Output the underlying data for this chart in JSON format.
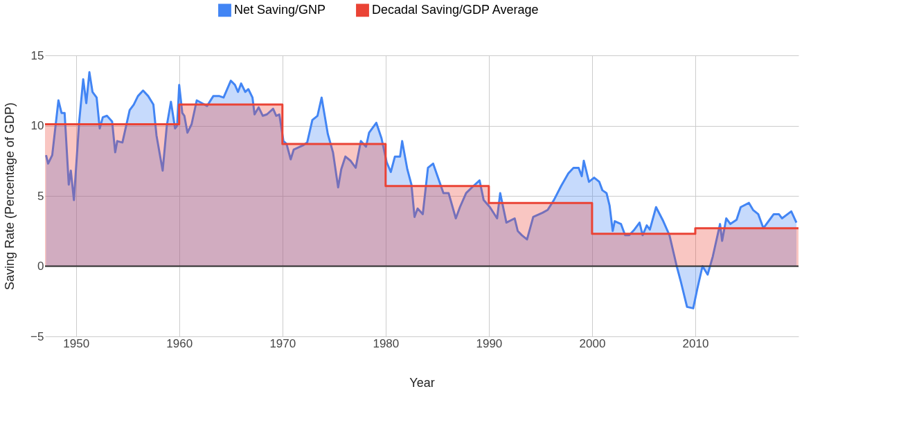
{
  "chart_data": {
    "type": "area",
    "xlabel": "Year",
    "ylabel": "Saving Rate (Percentage of GDP)",
    "xlim": [
      1947,
      2020
    ],
    "xticks": [
      1950,
      1960,
      1970,
      1980,
      1990,
      2000,
      2010
    ],
    "ylim": [
      -5,
      15
    ],
    "yticks": [
      -5,
      0,
      5,
      10,
      15
    ],
    "grid": true,
    "legend": "top",
    "ref_lines": [
      {
        "axis": "y",
        "value": 0,
        "color": "#333333"
      }
    ],
    "series": [
      {
        "name": "Net Saving/GNP",
        "color": "#4285f4",
        "x": [
          1947.1,
          1947.3,
          1947.7,
          1948.3,
          1948.6,
          1948.9,
          1949.3,
          1949.5,
          1949.8,
          1950.3,
          1950.7,
          1951.0,
          1951.3,
          1951.6,
          1952.0,
          1952.3,
          1952.6,
          1953.0,
          1953.5,
          1953.8,
          1954.0,
          1954.5,
          1955.2,
          1955.6,
          1956.0,
          1956.5,
          1957.0,
          1957.5,
          1957.8,
          1958.4,
          1958.8,
          1959.2,
          1959.6,
          1959.8,
          1960.0,
          1960.3,
          1960.5,
          1960.8,
          1961.2,
          1961.7,
          1962.2,
          1962.7,
          1963.3,
          1963.9,
          1964.3,
          1965.0,
          1965.4,
          1965.7,
          1966.0,
          1966.4,
          1966.7,
          1967.1,
          1967.3,
          1967.7,
          1968.1,
          1968.5,
          1969.1,
          1969.4,
          1969.7,
          1970.1,
          1970.4,
          1970.8,
          1971.1,
          1972.0,
          1972.4,
          1972.9,
          1973.4,
          1973.8,
          1974.4,
          1974.9,
          1975.4,
          1975.7,
          1976.1,
          1976.6,
          1977.1,
          1977.6,
          1978.1,
          1978.4,
          1979.1,
          1979.6,
          1980.1,
          1980.5,
          1980.9,
          1981.4,
          1981.6,
          1982.1,
          1982.5,
          1982.8,
          1983.1,
          1983.6,
          1984.1,
          1984.6,
          1985.6,
          1986.1,
          1986.8,
          1987.2,
          1987.8,
          1988.5,
          1989.1,
          1989.5,
          1990.1,
          1990.8,
          1991.1,
          1991.7,
          1992.5,
          1992.8,
          1993.2,
          1993.7,
          1994.3,
          1995.2,
          1995.7,
          1996.3,
          1997.0,
          1997.7,
          1998.2,
          1998.7,
          1999.0,
          1999.2,
          1999.7,
          2000.2,
          2000.7,
          2001.0,
          2001.4,
          2001.7,
          2002.0,
          2002.2,
          2002.8,
          2003.2,
          2003.6,
          2004.1,
          2004.6,
          2004.9,
          2005.3,
          2005.6,
          2006.2,
          2006.9,
          2007.5,
          2008.2,
          2008.6,
          2009.2,
          2009.8,
          2010.2,
          2010.7,
          2011.2,
          2011.7,
          2012.4,
          2012.6,
          2013.0,
          2013.4,
          2014.0,
          2014.4,
          2015.2,
          2015.6,
          2016.1,
          2016.6,
          2017.2,
          2017.6,
          2018.1,
          2018.4,
          2019.3,
          2019.8
        ],
        "values": [
          7.9,
          7.3,
          7.9,
          11.8,
          10.9,
          10.9,
          5.8,
          6.8,
          4.7,
          10.2,
          13.3,
          11.6,
          13.8,
          12.4,
          12.0,
          9.8,
          10.6,
          10.7,
          10.3,
          8.1,
          8.9,
          8.8,
          11.1,
          11.5,
          12.1,
          12.5,
          12.1,
          11.5,
          9.3,
          6.8,
          10.0,
          11.7,
          9.8,
          10.0,
          12.9,
          10.9,
          10.7,
          9.5,
          10.1,
          11.8,
          11.6,
          11.4,
          12.1,
          12.1,
          12.0,
          13.2,
          12.9,
          12.4,
          13.0,
          12.4,
          12.6,
          12.0,
          10.8,
          11.3,
          10.7,
          10.8,
          11.2,
          10.7,
          10.8,
          8.9,
          8.7,
          7.6,
          8.3,
          8.6,
          8.8,
          10.4,
          10.7,
          12.0,
          9.4,
          8.1,
          5.6,
          6.9,
          7.8,
          7.5,
          7.0,
          8.9,
          8.5,
          9.5,
          10.2,
          9.1,
          7.4,
          6.7,
          7.8,
          7.8,
          8.9,
          6.9,
          5.8,
          3.5,
          4.1,
          3.7,
          7.0,
          7.3,
          5.2,
          5.2,
          3.4,
          4.2,
          5.2,
          5.7,
          6.1,
          4.7,
          4.2,
          3.4,
          5.2,
          3.1,
          3.4,
          2.5,
          2.2,
          1.9,
          3.5,
          3.8,
          4.0,
          4.7,
          5.7,
          6.6,
          7.0,
          7.0,
          6.4,
          7.5,
          6.0,
          6.3,
          6.0,
          5.4,
          5.2,
          4.3,
          2.5,
          3.2,
          3.0,
          2.2,
          2.2,
          2.6,
          3.1,
          2.2,
          2.9,
          2.6,
          4.2,
          3.2,
          2.2,
          0.0,
          -1.1,
          -2.9,
          -3.0,
          -1.6,
          0.0,
          -0.6,
          0.7,
          3.0,
          1.8,
          3.4,
          3.0,
          3.3,
          4.2,
          4.5,
          4.0,
          3.7,
          2.7,
          3.3,
          3.7,
          3.7,
          3.4,
          3.9,
          3.1
        ]
      },
      {
        "name": "Decadal Saving/GDP  Average",
        "color": "#ea4335",
        "x": [
          1947,
          1960,
          1960,
          1970,
          1970,
          1980,
          1980,
          1990,
          1990,
          2000,
          2000,
          2010,
          2010,
          2020
        ],
        "values": [
          10.1,
          10.1,
          11.5,
          11.5,
          8.7,
          8.7,
          5.7,
          5.7,
          4.5,
          4.5,
          2.3,
          2.3,
          2.7,
          2.7
        ]
      }
    ]
  }
}
